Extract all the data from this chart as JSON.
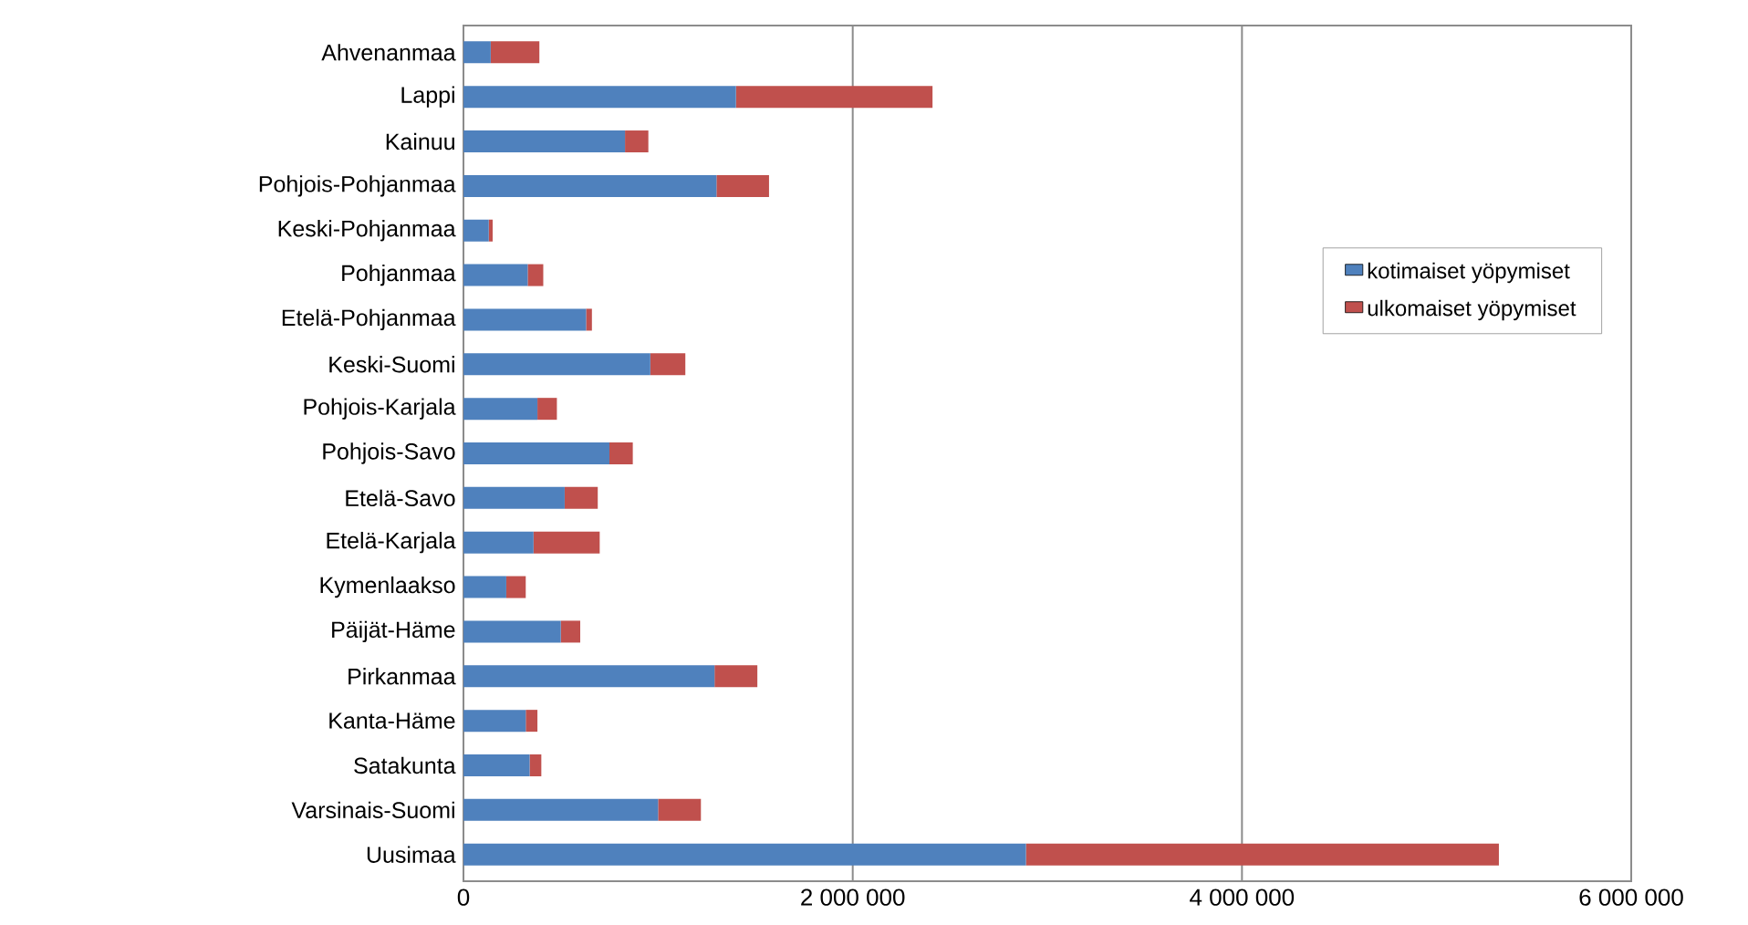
{
  "chart_data": {
    "type": "bar",
    "orientation": "horizontal",
    "stacked": true,
    "categories": [
      "Ahvenanmaa",
      "Lappi",
      "Kainuu",
      "Pohjois-Pohjanmaa",
      "Keski-Pohjanmaa",
      "Pohjanmaa",
      "Etelä-Pohjanmaa",
      "Keski-Suomi",
      "Pohjois-Karjala",
      "Pohjois-Savo",
      "Etelä-Savo",
      "Etelä-Karjala",
      "Kymenlaakso",
      "Päijät-Häme",
      "Pirkanmaa",
      "Kanta-Häme",
      "Satakunta",
      "Varsinais-Suomi",
      "Uusimaa"
    ],
    "series": [
      {
        "name": "kotimaiset yöpymiset",
        "color": "#4f81bd",
        "values": [
          140000,
          1400000,
          830000,
          1300000,
          130000,
          330000,
          630000,
          960000,
          380000,
          750000,
          520000,
          360000,
          220000,
          500000,
          1290000,
          320000,
          340000,
          1000000,
          2890000
        ]
      },
      {
        "name": "ulkomaiset yöpymiset",
        "color": "#c0504d",
        "values": [
          250000,
          1010000,
          120000,
          270000,
          20000,
          80000,
          30000,
          180000,
          100000,
          120000,
          170000,
          340000,
          100000,
          100000,
          220000,
          60000,
          60000,
          220000,
          2430000
        ]
      }
    ],
    "xlim": [
      0,
      6000000
    ],
    "xticks": [
      0,
      {
        "value": 2000000,
        "label": "2 000 000"
      },
      {
        "value": 4000000,
        "label": "4 000 000"
      },
      {
        "value": 6000000,
        "label": "6 000 000"
      }
    ],
    "grid": "x",
    "legend": "right"
  }
}
